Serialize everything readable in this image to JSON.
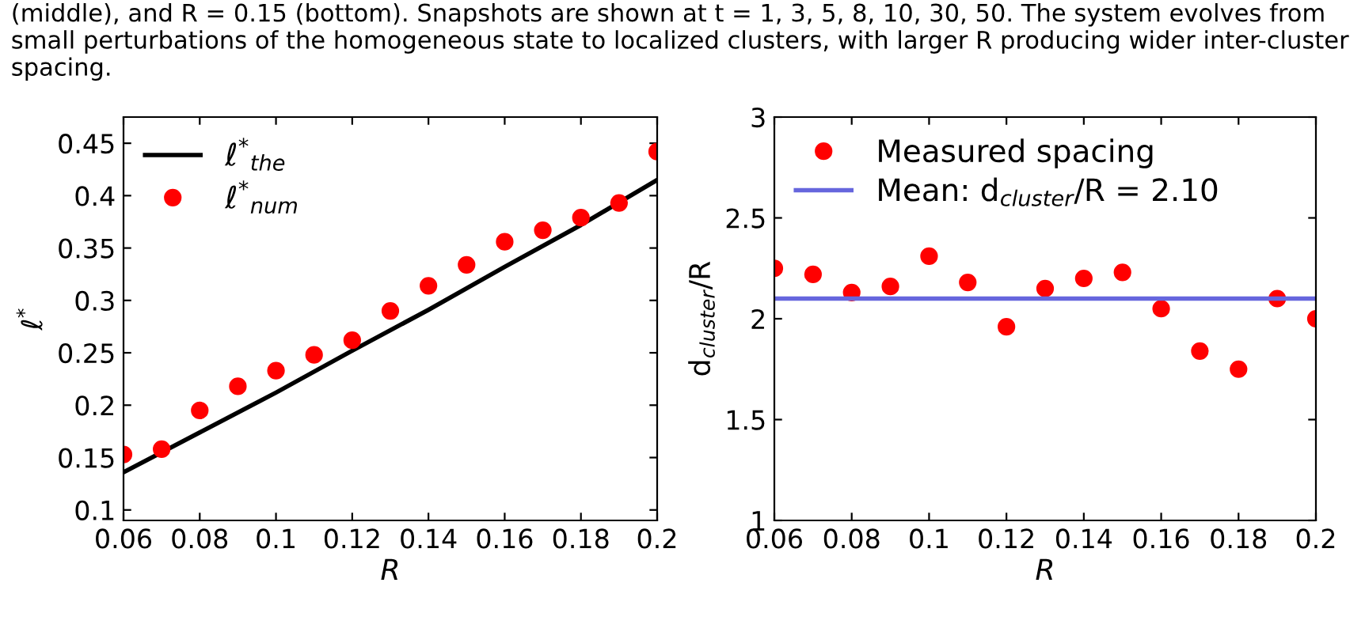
{
  "chart_data": [
    {
      "type": "scatter",
      "xlabel": "R",
      "ylabel": "ℓ$^{*}$",
      "annotations": [
        "(middle), and R = 0.15 (bottom). Snapshots are shown at t = 1, 3, 5, 8, 10, 30, 50. The system evolves from small perturbations of the homogeneous state to localized clusters, with larger R producing wider inter-cluster spacing."
      ],
      "series": [
        {
          "name": "ℓ$^{*}$$_{the}$",
          "type": "line",
          "color": "#000000",
          "marker": "none",
          "line_style": "solid",
          "x": [
            0.06,
            0.08,
            0.1,
            0.12,
            0.14,
            0.16,
            0.18,
            0.2
          ],
          "values": [
            0.136,
            0.174,
            0.212,
            0.252,
            0.291,
            0.332,
            0.372,
            0.415
          ]
        },
        {
          "name": "ℓ$^{*}$$_{num}$",
          "color": "#ff0000",
          "marker": "circle",
          "x": [
            0.06,
            0.07,
            0.08,
            0.09,
            0.1,
            0.11,
            0.12,
            0.13,
            0.14,
            0.15,
            0.16,
            0.17,
            0.18,
            0.19,
            0.2
          ],
          "values": [
            0.153,
            0.158,
            0.195,
            0.218,
            0.233,
            0.248,
            0.262,
            0.29,
            0.314,
            0.334,
            0.356,
            0.367,
            0.379,
            0.393,
            0.442
          ]
        }
      ],
      "xlim": [
        0.06,
        0.2
      ],
      "xticks": [
        0.06,
        0.08,
        0.1,
        0.12,
        0.14,
        0.16,
        0.18,
        0.2
      ],
      "ylim": [
        0.09,
        0.475
      ],
      "yticks": [
        0.1,
        0.15,
        0.2,
        0.25,
        0.3,
        0.35,
        0.4,
        0.45
      ],
      "grid": false,
      "legend": "top left"
    },
    {
      "type": "scatter",
      "xlabel": "R",
      "ylabel": "d$_{cluster}$/R",
      "series": [
        {
          "name": "Measured spacing",
          "color": "#ff0000",
          "marker": "circle",
          "x": [
            0.06,
            0.07,
            0.08,
            0.09,
            0.1,
            0.11,
            0.12,
            0.13,
            0.14,
            0.15,
            0.16,
            0.17,
            0.18,
            0.19,
            0.2
          ],
          "values": [
            2.25,
            2.22,
            2.13,
            2.16,
            2.31,
            2.18,
            1.96,
            2.15,
            2.2,
            2.23,
            2.05,
            1.84,
            1.75,
            2.1,
            2.0
          ]
        }
      ],
      "ref_lines": [
        {
          "axis": "y",
          "value": 2.1,
          "label": "Mean: d$_{cluster}$/R = 2.10",
          "color": "#6666dd",
          "line_style": "solid"
        }
      ],
      "xlim": [
        0.06,
        0.2
      ],
      "xticks": [
        0.06,
        0.08,
        0.1,
        0.12,
        0.14,
        0.16,
        0.18,
        0.2
      ],
      "ylim": [
        1,
        3
      ],
      "yticks": [
        1,
        1.5,
        2,
        2.5,
        3
      ],
      "grid": false,
      "legend": "top left"
    }
  ]
}
